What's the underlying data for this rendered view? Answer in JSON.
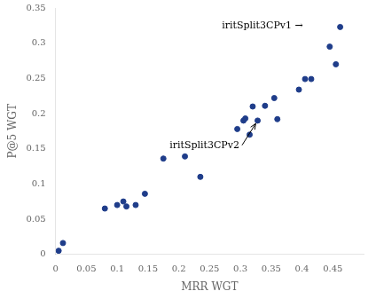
{
  "chart_data": {
    "type": "scatter",
    "x": [
      0.005,
      0.012,
      0.08,
      0.1,
      0.11,
      0.115,
      0.13,
      0.145,
      0.175,
      0.21,
      0.235,
      0.295,
      0.305,
      0.308,
      0.315,
      0.32,
      0.328,
      0.34,
      0.355,
      0.36,
      0.395,
      0.405,
      0.415,
      0.445,
      0.455,
      0.462
    ],
    "values": [
      0.005,
      0.016,
      0.065,
      0.07,
      0.075,
      0.068,
      0.07,
      0.086,
      0.136,
      0.139,
      0.11,
      0.178,
      0.19,
      0.193,
      0.17,
      0.21,
      0.19,
      0.211,
      0.222,
      0.192,
      0.234,
      0.249,
      0.249,
      0.295,
      0.27,
      0.323
    ],
    "color": "#1f3d8a",
    "xlabel": "MRR WGT",
    "ylabel": "P@5 WGT",
    "xlim": [
      0,
      0.5
    ],
    "ylim": [
      0,
      0.35
    ],
    "xticks": [
      0,
      0.05,
      0.1,
      0.15,
      0.2,
      0.25,
      0.3,
      0.35,
      0.4,
      0.45
    ],
    "yticks": [
      0,
      0.05,
      0.1,
      0.15,
      0.2,
      0.25,
      0.3,
      0.35
    ],
    "grid": false,
    "annotations": [
      {
        "text": "iritSplit3CPv1 →",
        "x": 0.27,
        "y": 0.325
      },
      {
        "text": "iritSplit3CPv2",
        "x": 0.185,
        "y": 0.155,
        "arrow_to": [
          0.328,
          0.19
        ]
      }
    ]
  }
}
